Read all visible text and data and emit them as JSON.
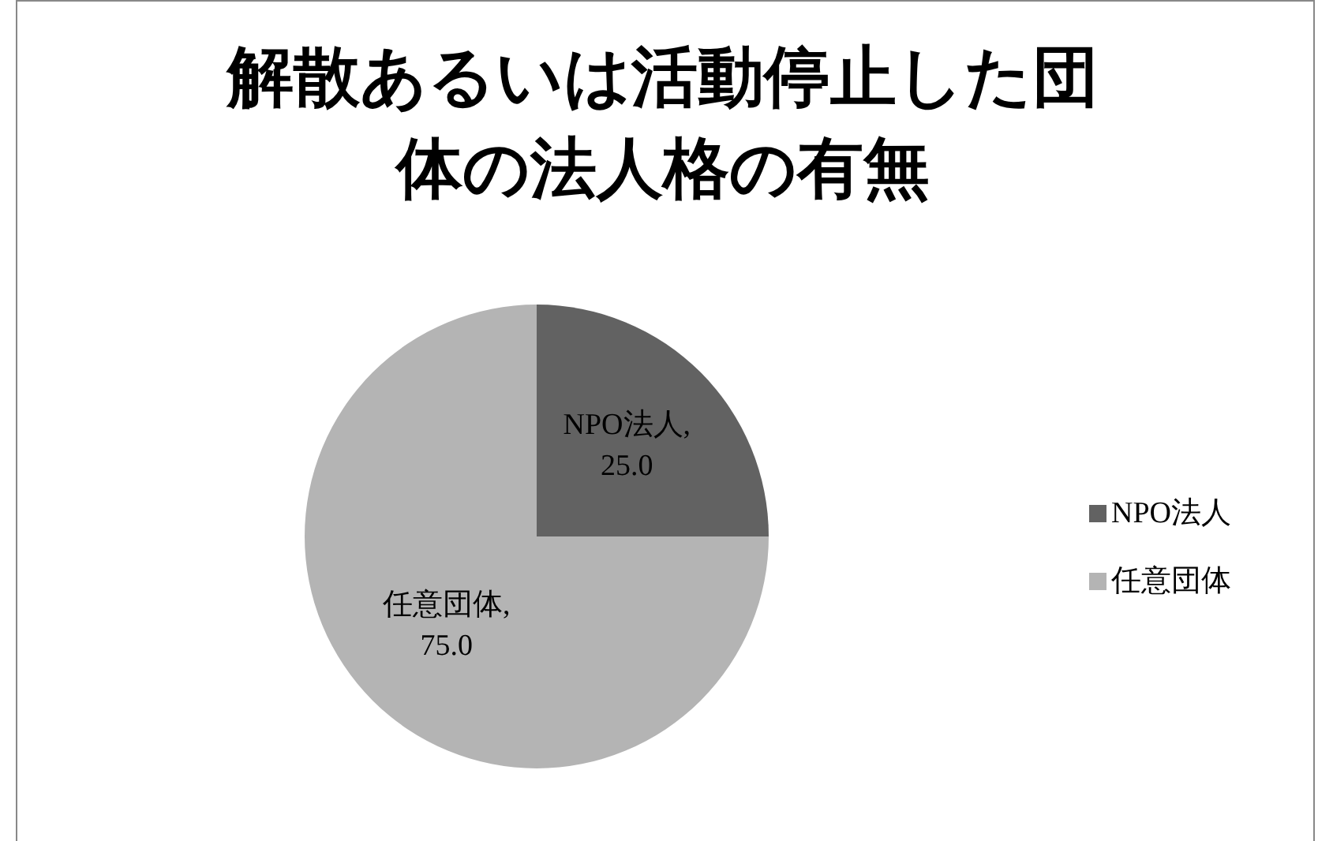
{
  "chart_data": {
    "type": "pie",
    "title": "解散あるいは活動停止した団体の法人格の有無",
    "categories": [
      "NPO法人",
      "任意団体"
    ],
    "values": [
      25.0,
      75.0
    ],
    "value_labels": [
      "NPO法人, 25.0",
      "任意団体, 75.0"
    ],
    "colors": [
      "#626262",
      "#b4b4b4"
    ],
    "legend": "right"
  }
}
